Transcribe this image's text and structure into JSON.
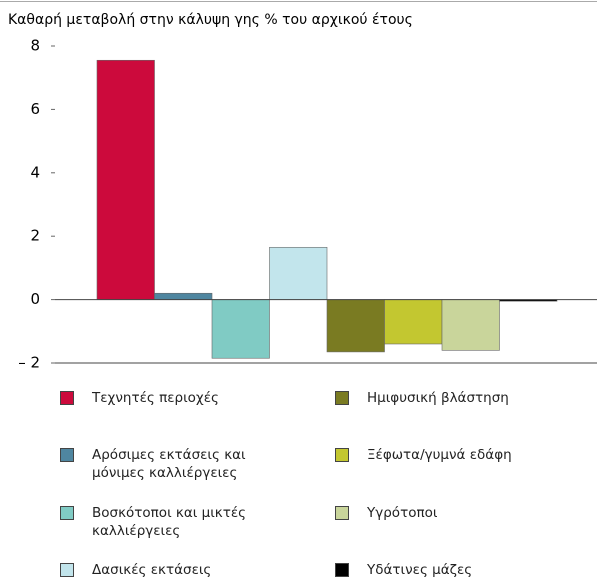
{
  "chart_data": {
    "type": "bar",
    "title": "Καθαρή μεταβολή στην κάλυψη γης % του αρχικού έτους",
    "categories": [
      "Τεχνητές περιοχές",
      "Αρόσιμες εκτάσεις και μόνιμες καλλιέργειες",
      "Βοσκότοποι και μικτές καλλιέργειες",
      "Δασικές εκτάσεις",
      "Ημιφυσική βλάστηση",
      "Ξέφωτα/γυμνά εδάφη",
      "Υγρότοποι",
      "Υδάτινες μάζες"
    ],
    "values": [
      7.55,
      0.2,
      -1.85,
      1.65,
      -1.65,
      -1.4,
      -1.6,
      -0.05
    ],
    "colors": [
      "#cc0a3c",
      "#4f86a0",
      "#80cbc4",
      "#c2e5ec",
      "#7a7b22",
      "#c3c730",
      "#c9d59b",
      "#000000"
    ],
    "ylim": [
      -2,
      8
    ],
    "yticks": [
      8,
      6,
      4,
      2,
      0,
      {
        "value": -2,
        "label": "– 2"
      }
    ]
  }
}
